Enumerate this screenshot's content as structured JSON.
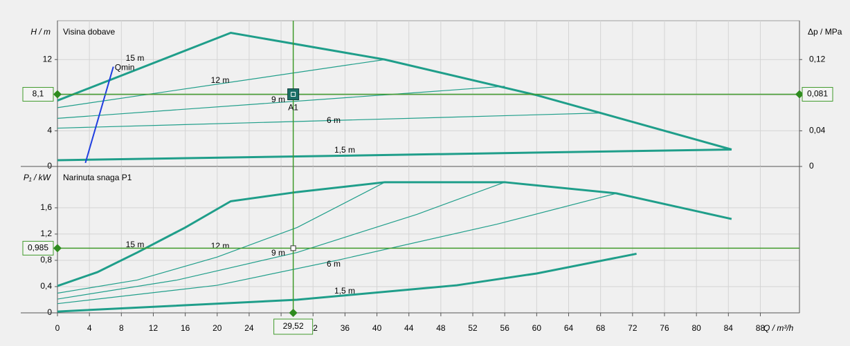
{
  "chart_data": [
    {
      "type": "line",
      "ylabel": "H / m",
      "title": "Visina dobave",
      "y2label": "Δp / MPa",
      "xlim": [
        0,
        92.9
      ],
      "ylim": [
        0,
        16.36
      ],
      "yticks": [
        0,
        4,
        8,
        12
      ],
      "y2lim": [
        0,
        0.1636
      ],
      "y2ticks": [
        0,
        {
          "value": 0.04,
          "label": "0,04"
        },
        {
          "value": 0.12,
          "label": "0,12"
        }
      ],
      "grid": true,
      "series": [
        {
          "name": "15 m",
          "color": "#1f9e8a",
          "linewidth": 3,
          "x": [
            0,
            21.7,
            41,
            60,
            84.4
          ],
          "values": [
            7.4,
            15.0,
            12.0,
            8.0,
            1.9
          ]
        },
        {
          "name": "12 m",
          "color": "#1f9e8a",
          "linewidth": 1.2,
          "x": [
            0,
            41
          ],
          "values": [
            6.6,
            12.0
          ]
        },
        {
          "name": "9 m",
          "color": "#1f9e8a",
          "linewidth": 1.2,
          "x": [
            0,
            56
          ],
          "values": [
            5.4,
            9.0
          ]
        },
        {
          "name": "6 m",
          "color": "#1f9e8a",
          "linewidth": 1.2,
          "x": [
            0,
            68
          ],
          "values": [
            4.3,
            6.0
          ]
        },
        {
          "name": "1,5 m",
          "color": "#1f9e8a",
          "linewidth": 3,
          "x": [
            0,
            84.4
          ],
          "values": [
            0.7,
            1.9
          ]
        },
        {
          "name": "Qmin",
          "color": "#1f3ee0",
          "linewidth": 2,
          "x": [
            3.5,
            7
          ],
          "values": [
            0.4,
            11.2
          ]
        }
      ],
      "marker": {
        "name": "A1",
        "x": 29.52,
        "y": {
          "value": 8.1,
          "label": "8,1"
        },
        "y2": {
          "value": 0.081,
          "label": "0,081"
        }
      }
    },
    {
      "type": "line",
      "ylabel": "P₁ / kW",
      "title": "Narinuta snaga P1",
      "xlabel": "Q / m³/h",
      "xlim": [
        0,
        92.9
      ],
      "ylim": [
        0,
        2.23
      ],
      "yticks": [
        0,
        {
          "value": 0.4,
          "label": "0,4"
        },
        {
          "value": 0.8,
          "label": "0,8"
        },
        {
          "value": 1.2,
          "label": "1,2"
        },
        {
          "value": 1.6,
          "label": "1,6"
        }
      ],
      "xticks": [
        0,
        4,
        8,
        12,
        16,
        20,
        24,
        28,
        32,
        36,
        40,
        44,
        48,
        52,
        56,
        60,
        64,
        68,
        72,
        76,
        80,
        84,
        88
      ],
      "grid": true,
      "series": [
        {
          "name": "15 m",
          "color": "#1f9e8a",
          "linewidth": 3,
          "x": [
            0,
            5,
            10,
            16,
            21.7,
            30,
            41,
            56,
            70,
            84.4
          ],
          "values": [
            0.41,
            0.62,
            0.92,
            1.3,
            1.7,
            1.84,
            1.99,
            1.99,
            1.82,
            1.43
          ]
        },
        {
          "name": "12 m",
          "color": "#1f9e8a",
          "linewidth": 1.2,
          "x": [
            0,
            10,
            20,
            30,
            41
          ],
          "values": [
            0.3,
            0.5,
            0.85,
            1.3,
            1.99
          ]
        },
        {
          "name": "9 m",
          "color": "#1f9e8a",
          "linewidth": 1.2,
          "x": [
            0,
            15,
            30,
            45,
            56
          ],
          "values": [
            0.21,
            0.5,
            0.92,
            1.5,
            1.99
          ]
        },
        {
          "name": "6 m",
          "color": "#1f9e8a",
          "linewidth": 1.2,
          "x": [
            0,
            20,
            35,
            55,
            70
          ],
          "values": [
            0.14,
            0.42,
            0.8,
            1.35,
            1.82
          ]
        },
        {
          "name": "1,5 m",
          "color": "#1f9e8a",
          "linewidth": 3,
          "x": [
            0,
            30,
            50,
            60,
            72.5
          ],
          "values": [
            0.02,
            0.2,
            0.42,
            0.6,
            0.9
          ]
        }
      ],
      "marker": {
        "x": {
          "value": 29.52,
          "label": "29,52"
        },
        "y": {
          "value": 0.985,
          "label": "0,985"
        }
      }
    }
  ]
}
